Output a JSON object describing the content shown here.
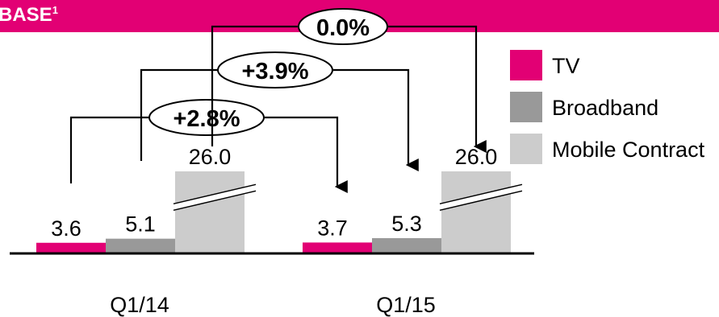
{
  "header": {
    "title": "BASE",
    "footnote": "1"
  },
  "colors": {
    "brand": "#e20074",
    "tv": "#e20074",
    "broadband": "#999999",
    "mobile_contract": "#cccccc",
    "axis": "#000000"
  },
  "chart_data": {
    "type": "bar",
    "title": "",
    "xlabel": "",
    "ylabel": "",
    "categories": [
      "Q1/14",
      "Q1/15"
    ],
    "axis_break_on": "Mobile Contract",
    "series": [
      {
        "name": "TV",
        "values": [
          3.6,
          3.7
        ],
        "labels": [
          "3.6",
          "3.7"
        ]
      },
      {
        "name": "Broadband",
        "values": [
          5.1,
          5.3
        ],
        "labels": [
          "5.1",
          "5.3"
        ]
      },
      {
        "name": "Mobile Contract",
        "values": [
          26.0,
          26.0
        ],
        "labels": [
          "26.0",
          "26.0"
        ]
      }
    ],
    "changes": [
      {
        "series": "TV",
        "label": "+2.8%"
      },
      {
        "series": "Broadband",
        "label": "+3.9%"
      },
      {
        "series": "Mobile Contract",
        "label": "0.0%"
      }
    ],
    "legend": {
      "placement": "right",
      "entries": [
        "TV",
        "Broadband",
        "Mobile Contract"
      ]
    }
  }
}
